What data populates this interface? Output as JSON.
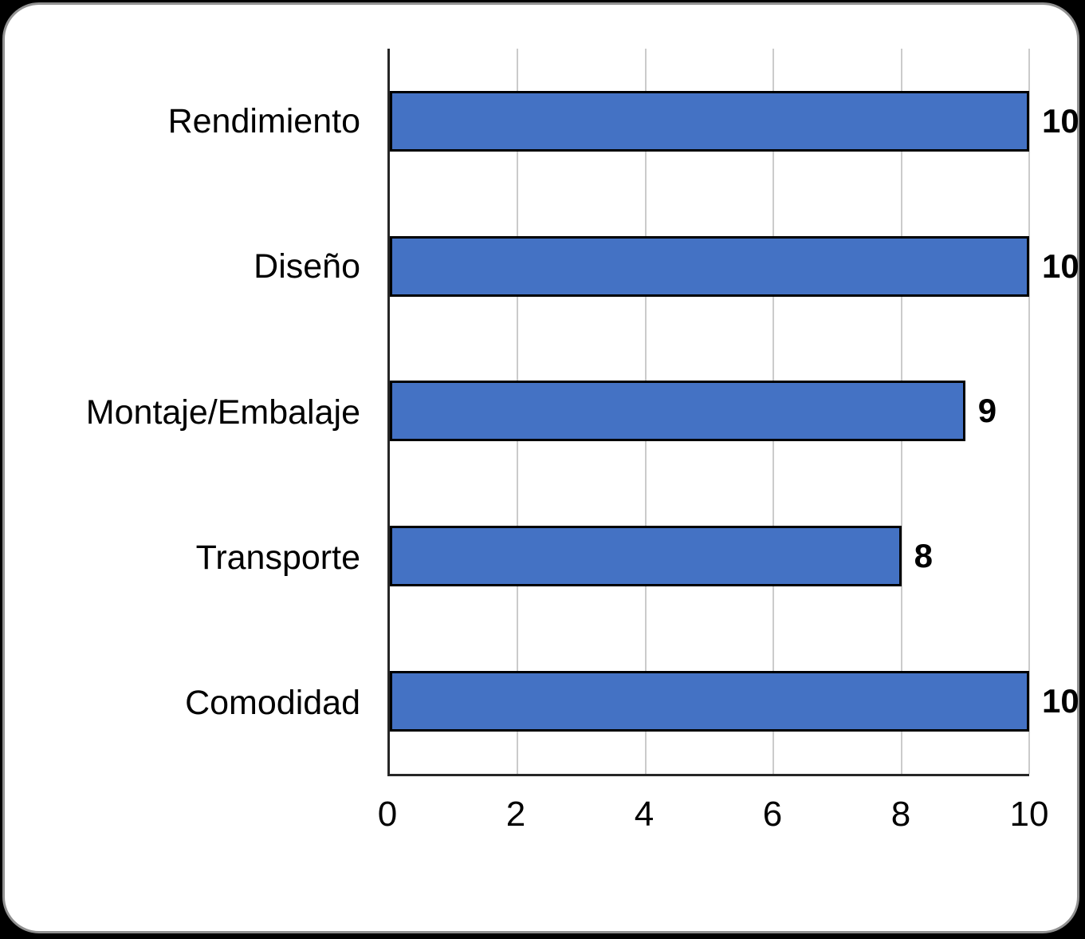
{
  "chart_data": {
    "type": "bar",
    "orientation": "horizontal",
    "categories": [
      "Rendimiento",
      "Diseño",
      "Montaje/Embalaje",
      "Transporte",
      "Comodidad"
    ],
    "values": [
      10,
      10,
      9,
      8,
      10
    ],
    "data_labels_shown": true,
    "xlim": [
      0,
      10
    ],
    "xticks": [
      0,
      2,
      4,
      6,
      8,
      10
    ],
    "grid": "vertical-only",
    "legend": "none",
    "colors": {
      "bar_fill": "#4472C4",
      "bar_border": "#000000",
      "gridline": "#CBCBCB",
      "axis_line": "#262626",
      "text": "#000000",
      "plot_background": "#FFFFFF",
      "outer_background": "#000000",
      "card_border": "#919191"
    }
  }
}
